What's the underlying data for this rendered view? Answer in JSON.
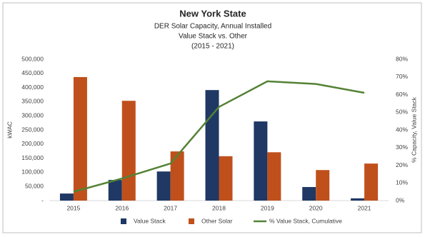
{
  "chart_data": {
    "type": "bar-line",
    "title": "New York State",
    "subtitle": [
      "DER Solar Capacity, Annual Installed",
      "Value Stack vs. Other",
      "(2015 - 2021)"
    ],
    "y_label": "kWAC",
    "y2_label": "% Capacity, Value Stack",
    "categories": [
      "2015",
      "2016",
      "2017",
      "2018",
      "2019",
      "2020",
      "2021"
    ],
    "series": [
      {
        "name": "Value Stack",
        "type": "bar",
        "color": "#1f3864",
        "values": [
          25000,
          73000,
          103000,
          391000,
          280000,
          48000,
          8000
        ]
      },
      {
        "name": "Other Solar",
        "type": "bar",
        "color": "#c0501b",
        "values": [
          437000,
          353000,
          174000,
          157000,
          171000,
          108000,
          131000
        ]
      },
      {
        "name": "% Value Stack, Cumulative",
        "type": "line",
        "axis": "y2",
        "color": "#548235",
        "values": [
          5,
          12.5,
          21,
          53,
          67.5,
          66,
          61
        ]
      }
    ],
    "ylim": [
      0,
      500000
    ],
    "yticks": [
      {
        "value": 0,
        "label": "-"
      },
      {
        "value": 50000,
        "label": "50,000"
      },
      {
        "value": 100000,
        "label": "100,000"
      },
      {
        "value": 150000,
        "label": "150,000"
      },
      {
        "value": 200000,
        "label": "200,000"
      },
      {
        "value": 250000,
        "label": "250,000"
      },
      {
        "value": 300000,
        "label": "300,000"
      },
      {
        "value": 350000,
        "label": "350,000"
      },
      {
        "value": 400000,
        "label": "400,000"
      },
      {
        "value": 450000,
        "label": "450,000"
      },
      {
        "value": 500000,
        "label": "500,000"
      }
    ],
    "y2lim": [
      0,
      80
    ],
    "y2ticks": [
      {
        "value": 0,
        "label": "0%"
      },
      {
        "value": 10,
        "label": "10%"
      },
      {
        "value": 20,
        "label": "20%"
      },
      {
        "value": 30,
        "label": "30%"
      },
      {
        "value": 40,
        "label": "40%"
      },
      {
        "value": 50,
        "label": "50%"
      },
      {
        "value": 60,
        "label": "60%"
      },
      {
        "value": 70,
        "label": "70%"
      },
      {
        "value": 80,
        "label": "80%"
      }
    ],
    "legend": "bottom"
  }
}
